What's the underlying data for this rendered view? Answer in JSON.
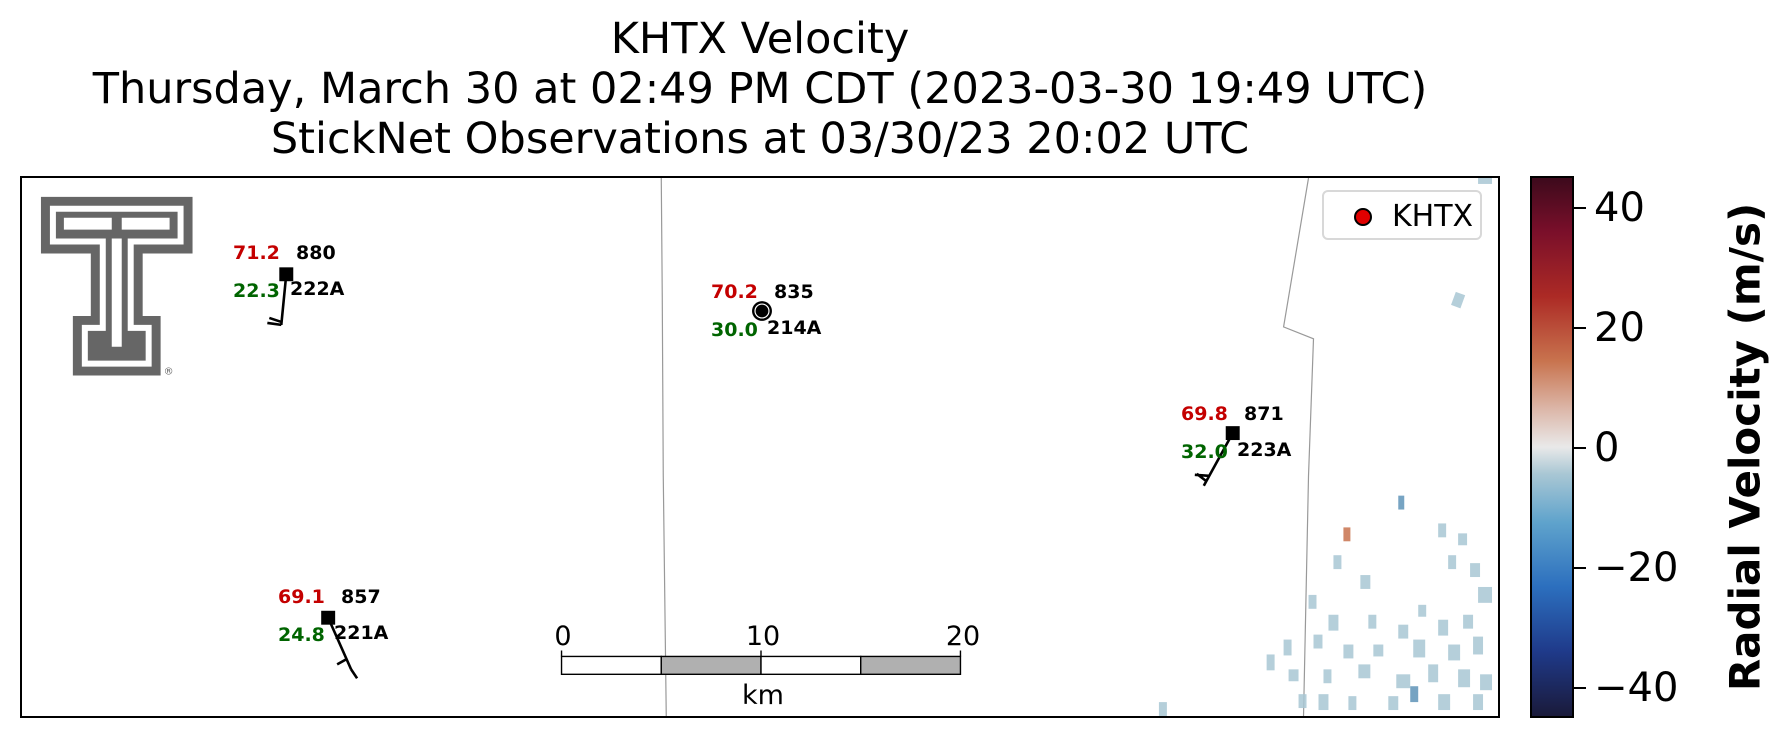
{
  "title": {
    "line1": "KHTX Velocity",
    "line2": "Thursday, March 30 at 02:49 PM CDT (2023-03-30 19:49 UTC)",
    "line3": "StickNet Observations at 03/30/23 20:02 UTC"
  },
  "legend": {
    "label": "KHTX",
    "marker_color": "#e00000"
  },
  "logo": {
    "name": "Texas Tech Double T",
    "mark": "®"
  },
  "stations": [
    {
      "temp": "71.2",
      "pressure": "880",
      "dewpoint": "22.3",
      "id": "222A"
    },
    {
      "temp": "70.2",
      "pressure": "835",
      "dewpoint": "30.0",
      "id": "214A"
    },
    {
      "temp": "69.8",
      "pressure": "871",
      "dewpoint": "32.0",
      "id": "223A"
    },
    {
      "temp": "69.1",
      "pressure": "857",
      "dewpoint": "24.8",
      "id": "221A"
    }
  ],
  "scale_bar": {
    "ticks": [
      "0",
      "10",
      "20"
    ],
    "unit": "km"
  },
  "colorbar": {
    "label": "Radial Velocity (m/s)",
    "ticks": [
      "40",
      "20",
      "0",
      "−20",
      "−40"
    ],
    "range": [
      -45,
      45
    ]
  },
  "colors": {
    "temp": "#c40000",
    "dewpoint": "#006400",
    "radar_pixels": "#a9c7d4"
  }
}
